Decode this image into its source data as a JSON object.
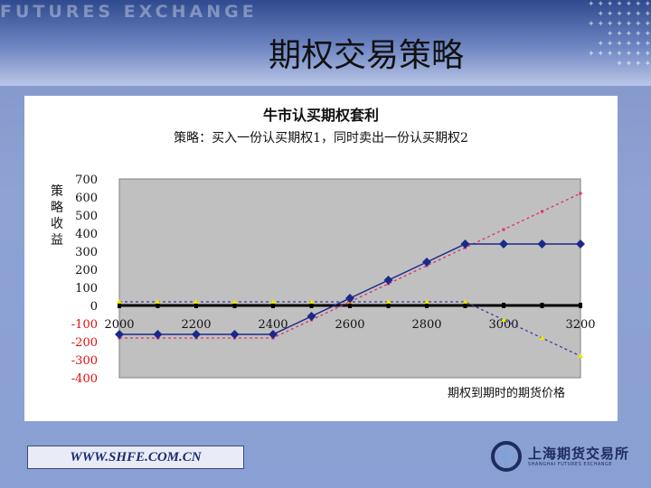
{
  "slide": {
    "title": "期权交易策略",
    "header_watermark": "FUTURES EXCHANGE",
    "footer_url": "WWW.SHFE.COM.CN",
    "logo_name": "上海期货交易所",
    "logo_sub": "SHANGHAI FUTURES EXCHANGE"
  },
  "colors": {
    "plot_bg": "#c0c0c0",
    "combined": "#1a2a8a",
    "option1": "#e0306a",
    "option2": "#3a3aa0",
    "markers_yellow": "#e8e800",
    "zero_line": "#000000"
  },
  "chart_data": {
    "type": "line",
    "title": "牛市认买期权套利",
    "subtitle": "策略：买入一份认买期权1，同时卖出一份认买期权2",
    "ylabel": "策略收益",
    "xlabel": "期权到期时的期货价格",
    "xlim": [
      2000,
      3200
    ],
    "ylim": [
      -400,
      700
    ],
    "x_ticks": [
      "2000",
      "2200",
      "2400",
      "2600",
      "2800",
      "3000",
      "3200"
    ],
    "y_ticks": [
      "700",
      "600",
      "500",
      "400",
      "300",
      "200",
      "100",
      "0",
      "-100",
      "-200",
      "-300",
      "-400"
    ],
    "grid": false,
    "series": [
      {
        "key": "combined",
        "style": "solid-diamond",
        "x": [
          2000,
          2100,
          2200,
          2300,
          2400,
          2500,
          2600,
          2700,
          2800,
          2900,
          3000,
          3100,
          3200
        ],
        "y": [
          -160,
          -160,
          -160,
          -160,
          -160,
          -60,
          40,
          140,
          240,
          340,
          340,
          340,
          340
        ]
      },
      {
        "key": "option1",
        "style": "dashed-square",
        "x": [
          2000,
          2100,
          2200,
          2300,
          2400,
          2500,
          2600,
          2700,
          2800,
          2900,
          3000,
          3100,
          3200
        ],
        "y": [
          -180,
          -180,
          -180,
          -180,
          -180,
          -80,
          20,
          120,
          220,
          320,
          420,
          520,
          620
        ]
      },
      {
        "key": "option2",
        "style": "dashed-triangle",
        "x": [
          2000,
          2100,
          2200,
          2300,
          2400,
          2500,
          2600,
          2700,
          2800,
          2900,
          3000,
          3100,
          3200
        ],
        "y": [
          20,
          20,
          20,
          20,
          20,
          20,
          20,
          20,
          20,
          20,
          -80,
          -180,
          -280
        ]
      }
    ]
  }
}
